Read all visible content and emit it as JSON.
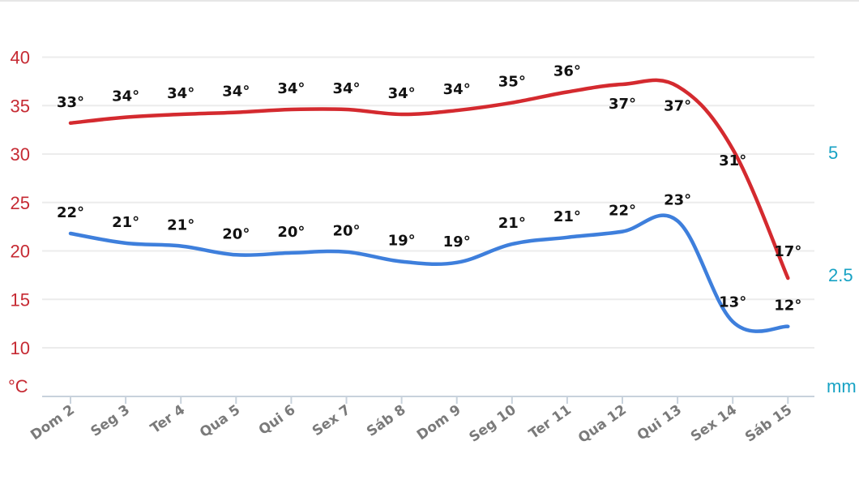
{
  "chart_data": {
    "type": "line",
    "categories": [
      "Dom 2",
      "Seg 3",
      "Ter 4",
      "Qua 5",
      "Qui 6",
      "Sex 7",
      "Sáb 8",
      "Dom 9",
      "Seg 10",
      "Ter 11",
      "Qua 12",
      "Qui 13",
      "Sex 14",
      "Sáb 15"
    ],
    "series": [
      {
        "key": "max",
        "color": "#d42a2f",
        "values": [
          33,
          34,
          34,
          34,
          34,
          34,
          34,
          34,
          35,
          36,
          37,
          37,
          31,
          17
        ],
        "curve": [
          33.2,
          33.8,
          34.1,
          34.3,
          34.6,
          34.6,
          34.1,
          34.5,
          35.3,
          36.4,
          37.2,
          37.0,
          30.5,
          17.2
        ],
        "labels": [
          "33°",
          "34°",
          "34°",
          "34°",
          "34°",
          "34°",
          "34°",
          "34°",
          "35°",
          "36°",
          "37°",
          "37°",
          "31°",
          "17°"
        ]
      },
      {
        "key": "min",
        "color": "#3e7fdc",
        "values": [
          22,
          21,
          21,
          20,
          20,
          20,
          19,
          19,
          21,
          21,
          22,
          23,
          13,
          12
        ],
        "curve": [
          21.8,
          20.8,
          20.5,
          19.6,
          19.8,
          19.9,
          18.9,
          18.8,
          20.7,
          21.4,
          22.0,
          23.1,
          12.7,
          12.2
        ],
        "labels": [
          "22°",
          "21°",
          "21°",
          "20°",
          "20°",
          "20°",
          "19°",
          "19°",
          "21°",
          "21°",
          "22°",
          "23°",
          "13°",
          "12°"
        ]
      }
    ],
    "y_left": {
      "ticks": [
        "40",
        "35",
        "30",
        "25",
        "20",
        "15",
        "10"
      ],
      "unit": "°C",
      "ylim": [
        5,
        40
      ]
    },
    "y_right": {
      "ticks": [
        "5",
        "2.5"
      ],
      "unit": "mm"
    },
    "grid": true
  }
}
